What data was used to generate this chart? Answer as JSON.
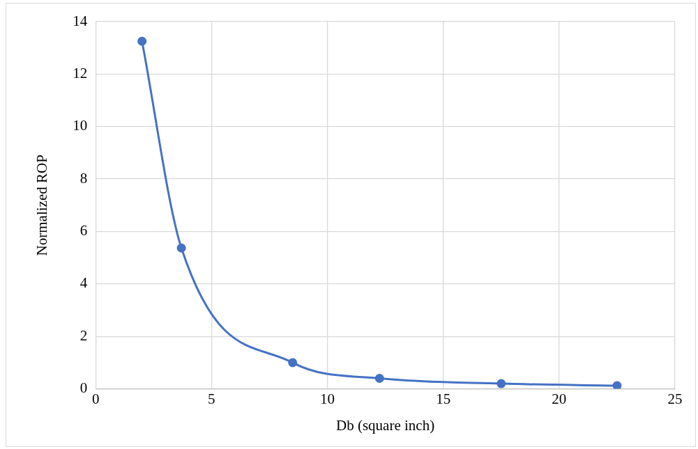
{
  "chart_data": {
    "type": "line",
    "xlabel": "Db (square inch)",
    "ylabel": "Normalized ROP",
    "x": [
      2,
      3.7,
      8.5,
      12.25,
      17.5,
      22.5
    ],
    "series": [
      {
        "color": "#4472c4",
        "values": [
          13.25,
          5.37,
          1,
          0.4,
          0.2,
          0.12
        ]
      }
    ],
    "xlim": [
      0,
      25
    ],
    "xticks": [
      0,
      5,
      10,
      15,
      20,
      25
    ],
    "ylim": [
      0,
      14
    ],
    "yticks": [
      0,
      2,
      4,
      6,
      8,
      10,
      12,
      14
    ],
    "grid": true,
    "legend": false,
    "marker": "circle",
    "line_style": "solid"
  }
}
